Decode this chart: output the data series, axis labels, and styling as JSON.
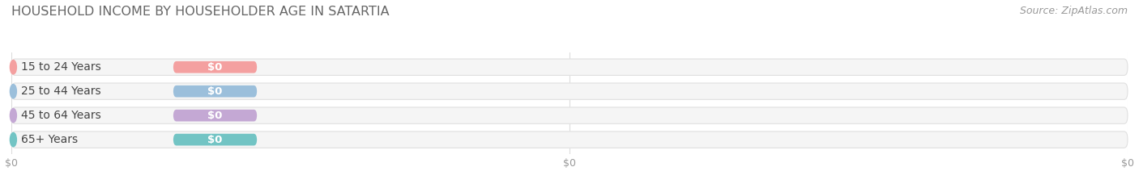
{
  "title": "HOUSEHOLD INCOME BY HOUSEHOLDER AGE IN SATARTIA",
  "source": "Source: ZipAtlas.com",
  "categories": [
    "15 to 24 Years",
    "25 to 44 Years",
    "45 to 64 Years",
    "65+ Years"
  ],
  "values": [
    0,
    0,
    0,
    0
  ],
  "bar_colors": [
    "#f4a0a0",
    "#9bbfdb",
    "#c4a8d4",
    "#72c4c4"
  ],
  "bar_bg_color": "#f5f5f5",
  "bar_border_color": "#e0e0e0",
  "value_label": "$0",
  "xlim": [
    0,
    100
  ],
  "background_color": "#ffffff",
  "title_color": "#666666",
  "title_fontsize": 11.5,
  "label_fontsize": 10,
  "source_fontsize": 9,
  "source_color": "#999999",
  "tick_label_color": "#999999",
  "tick_fontsize": 9,
  "xticks": [
    0,
    50,
    100
  ],
  "xtick_labels": [
    "$0",
    "$0",
    "$0"
  ]
}
